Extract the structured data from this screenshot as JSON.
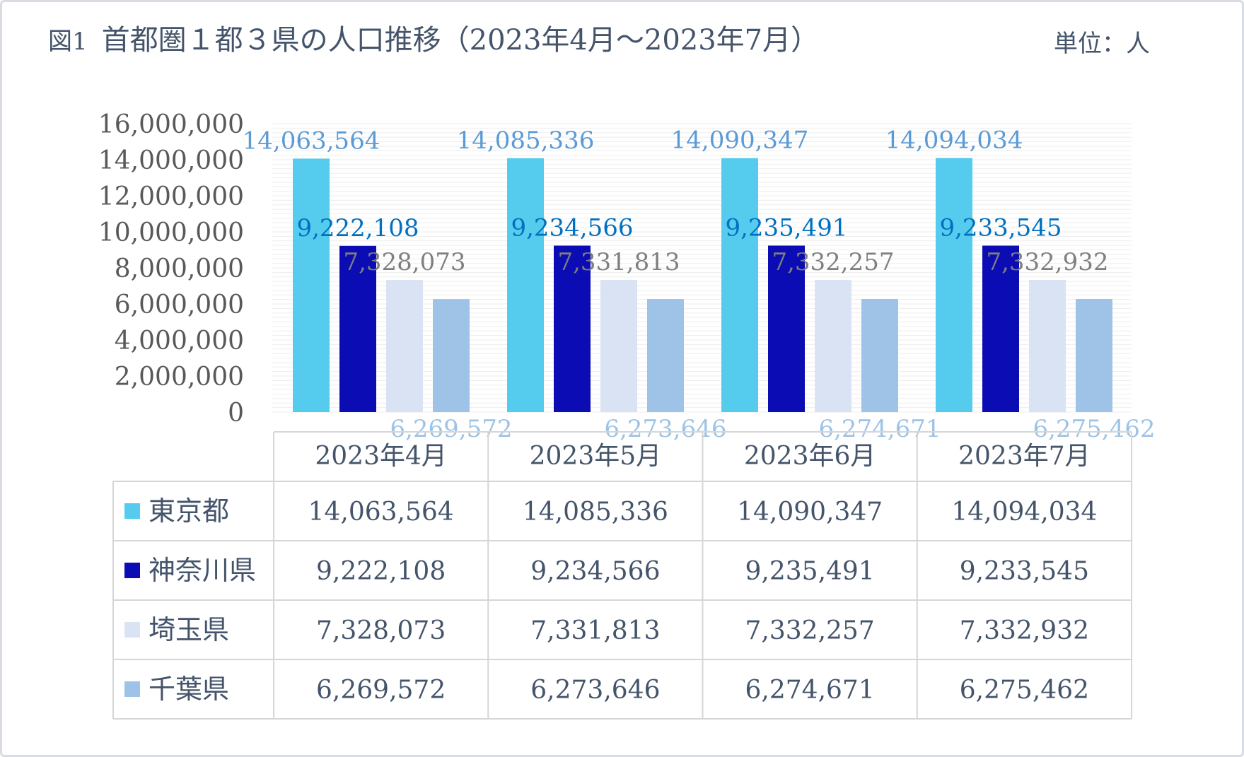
{
  "title": {
    "fig_label": "図1",
    "text": "首都圏１都３県の人口推移（2023年4月〜2023年7月）",
    "unit": "単位：人"
  },
  "chart_data": {
    "type": "bar",
    "categories": [
      "2023年4月",
      "2023年5月",
      "2023年6月",
      "2023年7月"
    ],
    "series": [
      {
        "name": "東京都",
        "color": "#55ccee",
        "label_color": "#5b9bd5",
        "values": [
          14063564,
          14085336,
          14090347,
          14094034
        ]
      },
      {
        "name": "神奈川県",
        "color": "#0c0cb4",
        "label_color": "#0070c0",
        "values": [
          9222108,
          9234566,
          9235491,
          9233545
        ]
      },
      {
        "name": "埼玉県",
        "color": "#dae3f3",
        "label_color": "#7f7f7f",
        "values": [
          7328073,
          7331813,
          7332257,
          7332932
        ]
      },
      {
        "name": "千葉県",
        "color": "#9fc3e7",
        "label_color": "#9dc3e6",
        "values": [
          6269572,
          6273646,
          6274671,
          6275462
        ]
      }
    ],
    "ylim": [
      0,
      16000000
    ],
    "yticks": [
      0,
      2000000,
      4000000,
      6000000,
      8000000,
      10000000,
      12000000,
      14000000,
      16000000
    ],
    "ytick_labels": [
      "0",
      "2,000,000",
      "4,000,000",
      "6,000,000",
      "8,000,000",
      "10,000,000",
      "12,000,000",
      "14,000,000",
      "16,000,000"
    ],
    "data_labels": [
      [
        "14,063,564",
        "14,085,336",
        "14,090,347",
        "14,094,034"
      ],
      [
        "9,222,108",
        "9,234,566",
        "9,235,491",
        "9,233,545"
      ],
      [
        "7,328,073",
        "7,331,813",
        "7,332,257",
        "7,332,932"
      ],
      [
        "6,269,572",
        "6,273,646",
        "6,274,671",
        "6,275,462"
      ]
    ],
    "grid": true,
    "legend": "data-table"
  }
}
